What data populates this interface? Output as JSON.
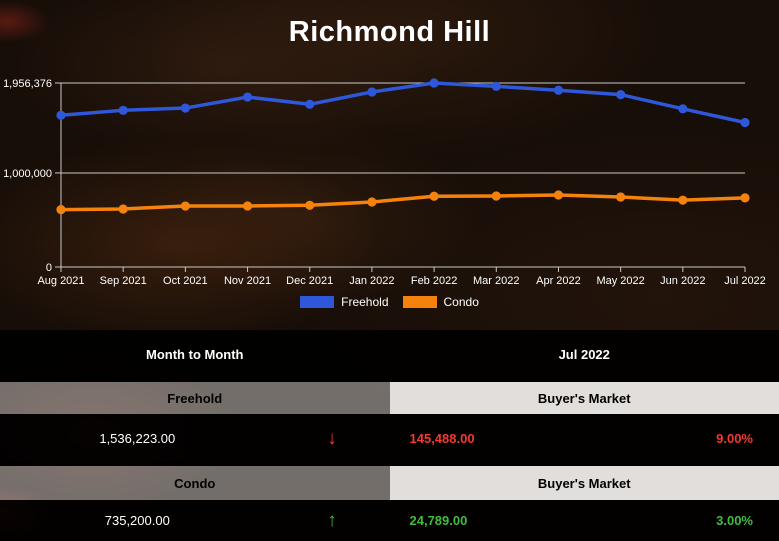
{
  "title": "Richmond Hill",
  "chart_data": {
    "type": "line",
    "title": "Richmond Hill",
    "x": [
      "Aug 2021",
      "Sep 2021",
      "Oct 2021",
      "Nov 2021",
      "Dec 2021",
      "Jan 2022",
      "Feb 2022",
      "Mar 2022",
      "Apr 2022",
      "May 2022",
      "Jun 2022",
      "Jul 2022"
    ],
    "series": [
      {
        "name": "Freehold",
        "color": "#2f57d9",
        "values": [
          1613000,
          1666000,
          1690000,
          1807000,
          1730000,
          1861000,
          1956376,
          1921000,
          1879000,
          1833000,
          1681711,
          1536223
        ]
      },
      {
        "name": "Condo",
        "color": "#f5820d",
        "values": [
          610000,
          617000,
          648000,
          649000,
          656000,
          691000,
          752000,
          755000,
          766000,
          744000,
          710411,
          735200
        ]
      }
    ],
    "ylim": [
      0,
      1956376
    ],
    "yticks": [
      {
        "value": 1956376,
        "label": "1,956,376"
      },
      {
        "value": 1000000,
        "label": "1,000,000"
      },
      {
        "value": 0,
        "label": "0"
      }
    ],
    "grid": "horizontal",
    "legend_position": "bottom",
    "axis_color": "#c9c9c9",
    "label_color": "#ffffff"
  },
  "table": {
    "period_header": {
      "left": "Month to Month",
      "right": "Jul 2022"
    },
    "rows": [
      {
        "type": "Freehold",
        "market": "Buyer's Market",
        "value": "1,536,223.00",
        "direction": "down",
        "arrow": "↓",
        "change": "145,488.00",
        "percent": "9.00%",
        "trend_color": "#f23a2e"
      },
      {
        "type": "Condo",
        "market": "Buyer's Market",
        "value": "735,200.00",
        "direction": "up",
        "arrow": "↑",
        "change": "24,789.00",
        "percent": "3.00%",
        "trend_color": "#3fbc3f"
      }
    ]
  }
}
